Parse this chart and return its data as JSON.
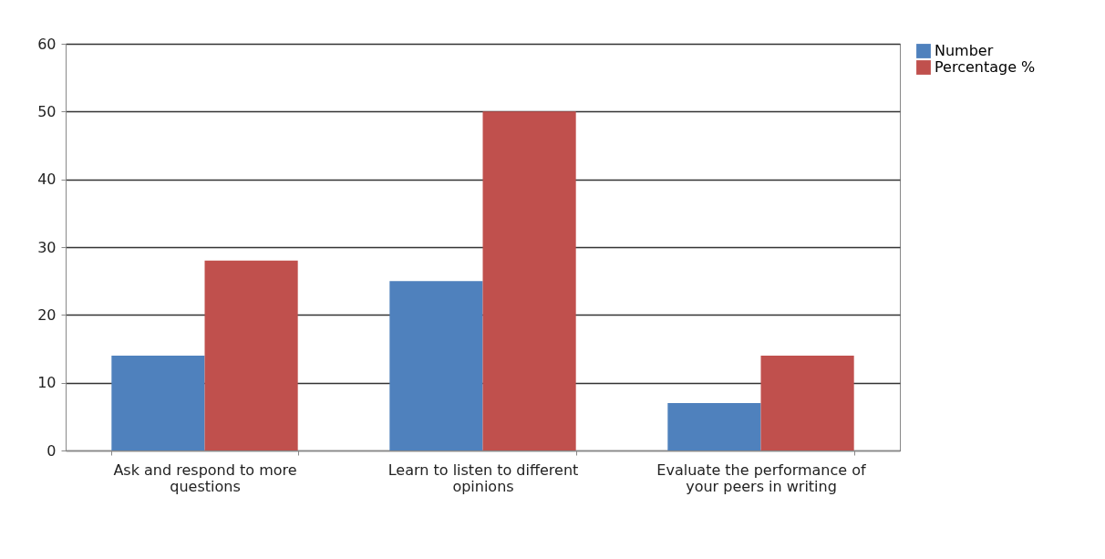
{
  "chart_data": {
    "type": "bar",
    "categories": [
      "Ask and respond to more questions",
      "Learn to listen to different opinions",
      "Evaluate the performance of your peers in writing"
    ],
    "series": [
      {
        "name": "Number",
        "color": "#4f81bd",
        "values": [
          14,
          25,
          7
        ]
      },
      {
        "name": "Percentage %",
        "color": "#c0504d",
        "values": [
          28,
          50,
          14
        ]
      }
    ],
    "ylim": [
      0,
      60
    ],
    "yticks": [
      0,
      10,
      20,
      30,
      40,
      50,
      60
    ],
    "grid": "y",
    "legend": "right"
  }
}
